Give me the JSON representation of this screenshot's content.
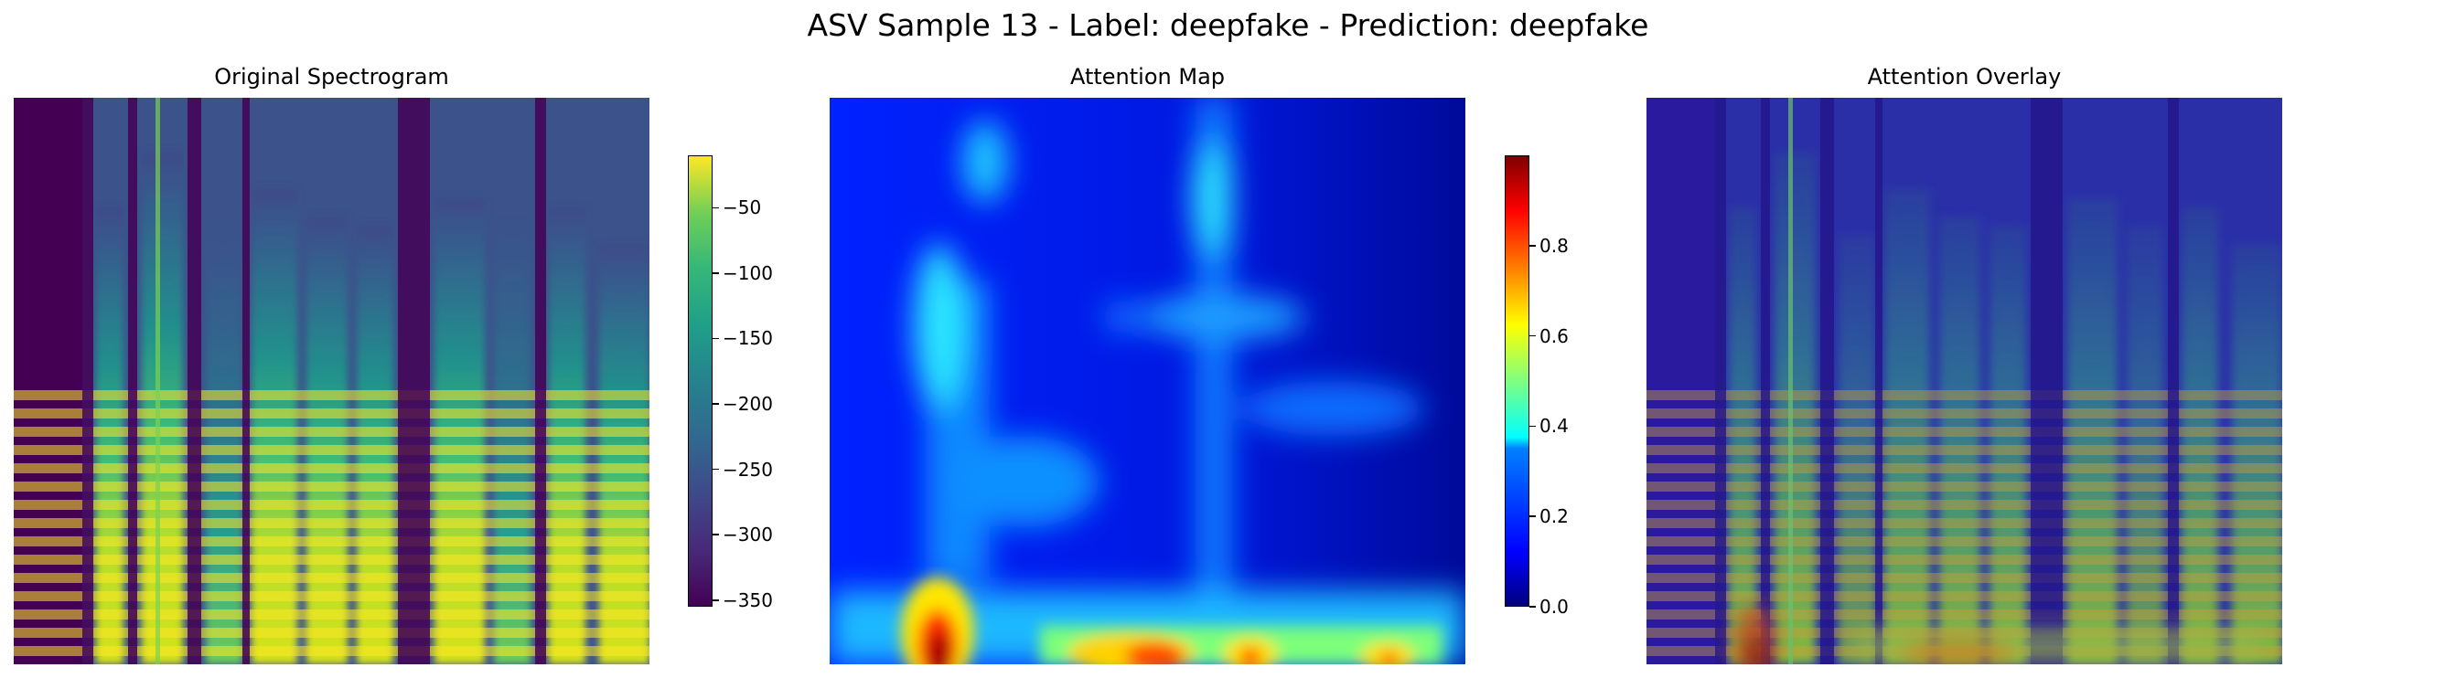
{
  "figure": {
    "suptitle": "ASV Sample 13 - Label: deepfake - Prediction: deepfake"
  },
  "chart_data": [
    {
      "type": "heatmap",
      "title": "Original Spectrogram",
      "colormap": "viridis",
      "axes_visible": false,
      "colorbar": {
        "range": [
          -355,
          -10
        ],
        "ticks": [
          -50,
          -100,
          -150,
          -200,
          -250,
          -300,
          -350
        ],
        "tick_labels": [
          "−50",
          "−100",
          "−150",
          "−200",
          "−250",
          "−300",
          "−350"
        ]
      }
    },
    {
      "type": "heatmap",
      "title": "Attention Map",
      "colormap": "jet",
      "axes_visible": false,
      "colorbar": {
        "range": [
          0.0,
          1.0
        ],
        "ticks": [
          0.8,
          0.6,
          0.4,
          0.2,
          0.0
        ],
        "tick_labels": [
          "0.8",
          "0.6",
          "0.4",
          "0.2",
          "0.0"
        ]
      }
    },
    {
      "type": "heatmap",
      "title": "Attention Overlay",
      "colormap": "viridis + jet overlay",
      "axes_visible": false
    }
  ]
}
